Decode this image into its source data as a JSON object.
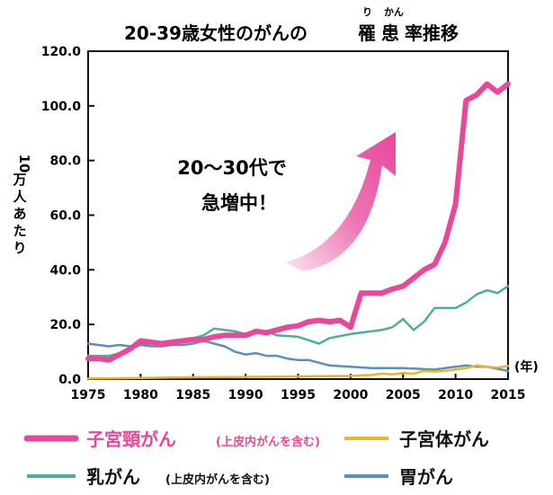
{
  "chart_data": {
    "type": "line",
    "title_parts": [
      "20-39歳女性のがんの",
      "罹",
      "患",
      "率推移"
    ],
    "title_ruby": [
      "り",
      "かん"
    ],
    "ylabel_lines": [
      "10",
      "万",
      "人",
      "あ",
      "た",
      "り"
    ],
    "x_unit": "(年)",
    "xlim": [
      1975,
      2015
    ],
    "ylim": [
      0,
      120
    ],
    "x_ticks": [
      1975,
      1980,
      1985,
      1990,
      1995,
      2000,
      2005,
      2010,
      2015
    ],
    "y_ticks": [
      "0.0",
      "20.0",
      "40.0",
      "60.0",
      "80.0",
      "100.0",
      "120.0"
    ],
    "annotation_lines": [
      "20〜30代で",
      "急増中！"
    ],
    "annotation_color": "#e8479a",
    "grid": false,
    "series": [
      {
        "name": "子宮頸がん",
        "name_note": "(上皮内がんを含む)",
        "color": "#e8479a",
        "width": 6,
        "x": [
          1975,
          1976,
          1977,
          1978,
          1979,
          1980,
          1981,
          1982,
          1983,
          1984,
          1985,
          1986,
          1987,
          1988,
          1989,
          1990,
          1991,
          1992,
          1993,
          1994,
          1995,
          1996,
          1997,
          1998,
          1999,
          2000,
          2001,
          2002,
          2003,
          2004,
          2005,
          2006,
          2007,
          2008,
          2009,
          2010,
          2011,
          2012,
          2013,
          2014,
          2015
        ],
        "values": [
          7.5,
          7.5,
          7,
          9,
          11,
          14,
          13.5,
          13,
          13.5,
          14,
          14.5,
          14.5,
          15.5,
          16,
          16,
          16,
          17.5,
          17,
          18,
          19,
          19.5,
          21,
          21.5,
          21,
          21.5,
          19,
          31.5,
          31.5,
          31.5,
          33,
          34,
          37,
          40,
          42,
          50,
          64,
          102,
          104,
          108,
          105,
          108
        ]
      },
      {
        "name": "子宮体がん",
        "name_note": "",
        "color": "#e8b429",
        "width": 2.5,
        "x": [
          1975,
          1980,
          1985,
          1990,
          1995,
          2000,
          2002,
          2003,
          2004,
          2005,
          2006,
          2007,
          2008,
          2009,
          2010,
          2011,
          2012,
          2013,
          2014,
          2015
        ],
        "values": [
          0.2,
          0.4,
          0.7,
          0.8,
          1.0,
          1.2,
          1.5,
          2.0,
          1.7,
          2.2,
          2.0,
          3.0,
          2.8,
          3.0,
          3.5,
          4.0,
          5.0,
          4.5,
          4.2,
          4.8
        ]
      },
      {
        "name": "乳がん",
        "name_note": "(上皮内がんを含む)",
        "color": "#4fae94",
        "width": 2.5,
        "x": [
          1975,
          1977,
          1978,
          1980,
          1982,
          1984,
          1985,
          1986,
          1987,
          1988,
          1989,
          1990,
          1991,
          1992,
          1993,
          1995,
          1997,
          1998,
          2000,
          2002,
          2003,
          2004,
          2005,
          2006,
          2007,
          2008,
          2009,
          2010,
          2011,
          2012,
          2013,
          2014,
          2015
        ],
        "values": [
          8.5,
          8.5,
          9.5,
          12.5,
          13.5,
          14.5,
          15,
          16,
          18.5,
          18,
          17.5,
          16.5,
          17,
          17.5,
          16,
          15.5,
          13,
          15,
          16.5,
          17.5,
          18,
          19,
          22,
          18,
          21,
          26,
          26,
          26,
          28,
          31,
          32.5,
          31.5,
          34
        ]
      },
      {
        "name": "胃がん",
        "name_note": "",
        "color": "#5a8fc2",
        "width": 2.5,
        "x": [
          1975,
          1976,
          1977,
          1978,
          1979,
          1980,
          1981,
          1982,
          1983,
          1984,
          1985,
          1986,
          1987,
          1988,
          1989,
          1990,
          1991,
          1992,
          1993,
          1994,
          1995,
          1996,
          1997,
          1998,
          2000,
          2002,
          2005,
          2008,
          2009,
          2010,
          2011,
          2012,
          2013,
          2015
        ],
        "values": [
          13,
          12.5,
          12,
          12.5,
          12,
          12.5,
          12,
          12,
          12.5,
          12.5,
          13,
          14,
          13,
          12,
          10,
          9,
          9.5,
          8.5,
          8.5,
          7.5,
          7,
          7,
          6,
          5,
          4.5,
          4,
          4,
          3.5,
          4,
          4.5,
          5,
          4.5,
          4.5,
          3
        ]
      }
    ]
  }
}
